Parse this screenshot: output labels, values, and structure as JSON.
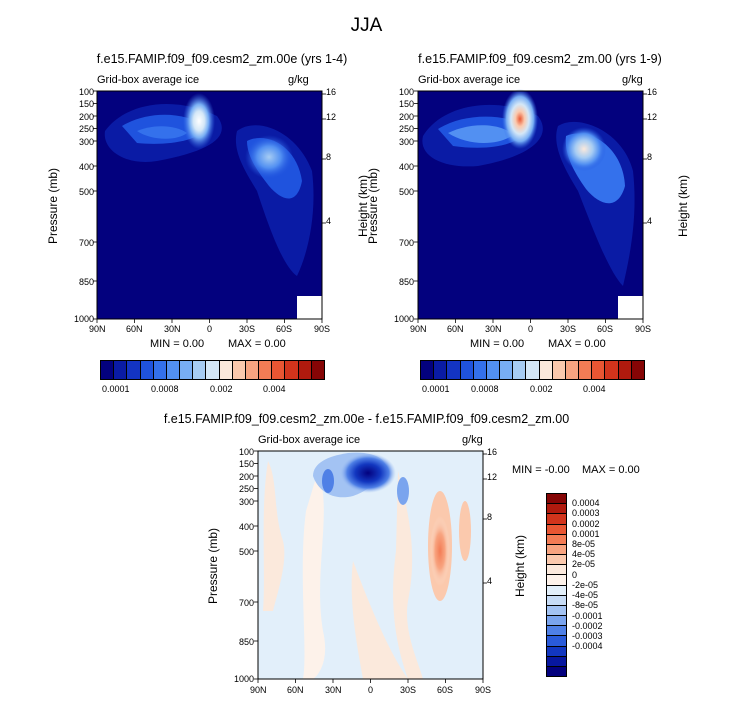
{
  "figure": {
    "title": "JJA"
  },
  "chart_data": [
    {
      "type": "heatmap",
      "title": "f.e15.FAMIP.f09_f09.cesm2_zm.00e (yrs 1-4)",
      "left_string": "Grid-box average ice",
      "right_string": "g/kg",
      "ylabel": "Pressure (mb)",
      "ylabel_right": "Height (km)",
      "x_ticks": [
        "90N",
        "60N",
        "30N",
        "0",
        "30S",
        "60S",
        "90S"
      ],
      "y_ticks": [
        "100",
        "150",
        "200",
        "250",
        "300",
        "400",
        "500",
        "700",
        "850",
        "1000"
      ],
      "y_ticks_right": [
        "16",
        "12",
        "8",
        "4"
      ],
      "min_label": "MIN =   0.00",
      "max_label": "MAX =   0.00",
      "colorbar_labels": [
        "0.0001",
        "0.0008",
        "0.002",
        "0.004"
      ],
      "colors": [
        "#03017e",
        "#0a1ba5",
        "#1334c4",
        "#1f53de",
        "#3471ec",
        "#5290f2",
        "#78aef4",
        "#a6ccf3",
        "#d4e7f7",
        "#fbe9dc",
        "#fbc9ad",
        "#f8a480",
        "#f37c55",
        "#e85633",
        "#d1341c",
        "#b01a0e",
        "#850505"
      ]
    },
    {
      "type": "heatmap",
      "title": "f.e15.FAMIP.f09_f09.cesm2_zm.00 (yrs 1-9)",
      "left_string": "Grid-box average ice",
      "right_string": "g/kg",
      "ylabel": "Pressure (mb)",
      "ylabel_right": "Height (km)",
      "x_ticks": [
        "90N",
        "60N",
        "30N",
        "0",
        "30S",
        "60S",
        "90S"
      ],
      "y_ticks": [
        "100",
        "150",
        "200",
        "250",
        "300",
        "400",
        "500",
        "700",
        "850",
        "1000"
      ],
      "y_ticks_right": [
        "16",
        "12",
        "8",
        "4"
      ],
      "min_label": "MIN =   0.00",
      "max_label": "MAX =   0.00",
      "colorbar_labels": [
        "0.0001",
        "0.0008",
        "0.002",
        "0.004"
      ]
    },
    {
      "type": "heatmap",
      "title": "f.e15.FAMIP.f09_f09.cesm2_zm.00e - f.e15.FAMIP.f09_f09.cesm2_zm.00",
      "left_string": "Grid-box average ice",
      "right_string": "g/kg",
      "ylabel": "Pressure (mb)",
      "ylabel_right": "Height (km)",
      "x_ticks": [
        "90N",
        "60N",
        "30N",
        "0",
        "30S",
        "60S",
        "90S"
      ],
      "y_ticks": [
        "100",
        "150",
        "200",
        "250",
        "300",
        "400",
        "500",
        "700",
        "850",
        "1000"
      ],
      "y_ticks_right": [
        "16",
        "12",
        "8",
        "4"
      ],
      "min_label": "MIN =  -0.00",
      "max_label": "MAX =   0.00",
      "colorbar_labels": [
        "0.0004",
        "0.0003",
        "0.0002",
        "0.0001",
        "8e-05",
        "4e-05",
        "2e-05",
        "0",
        "-2e-05",
        "-4e-05",
        "-8e-05",
        "-0.0001",
        "-0.0002",
        "-0.0003",
        "-0.0004"
      ],
      "colors": [
        "#850505",
        "#b01a0e",
        "#d1341c",
        "#e85633",
        "#f37c55",
        "#f8a480",
        "#fbc9ad",
        "#fbe9dc",
        "#fdf2ea",
        "#e2effa",
        "#c7dcf6",
        "#a3c3f3",
        "#7aa4ee",
        "#4f80e6",
        "#2a5bd9",
        "#1237c0",
        "#07179f",
        "#03017e"
      ]
    }
  ]
}
